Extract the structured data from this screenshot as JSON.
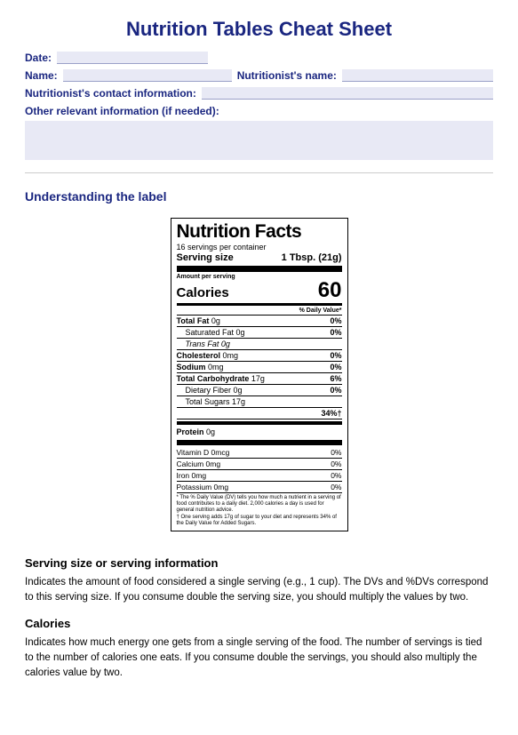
{
  "title": "Nutrition Tables Cheat Sheet",
  "form": {
    "date_label": "Date:",
    "name_label": "Name:",
    "nutritionist_label": "Nutritionist's name:",
    "contact_label": "Nutritionist's contact information:",
    "other_label": "Other relevant information (if needed):"
  },
  "understanding_heading": "Understanding the label",
  "label": {
    "title": "Nutrition Facts",
    "servings_per_container": "16 servings per container",
    "serving_size_label": "Serving size",
    "serving_size_value": "1 Tbsp. (21g)",
    "amount_per_serving": "Amount per serving",
    "calories_label": "Calories",
    "calories_value": "60",
    "dv_header": "% Daily Value*",
    "rows": [
      {
        "name": "Total Fat",
        "amount": "0g",
        "dv": "0%",
        "bold": true
      },
      {
        "name": "Saturated Fat",
        "amount": "0g",
        "dv": "0%",
        "indent": 1
      },
      {
        "name": "Trans Fat",
        "amount": "0g",
        "dv": "",
        "indent": 2
      },
      {
        "name": "Cholesterol",
        "amount": "0mg",
        "dv": "0%",
        "bold": true
      },
      {
        "name": "Sodium",
        "amount": "0mg",
        "dv": "0%",
        "bold": true
      },
      {
        "name": "Total Carbohydrate",
        "amount": "17g",
        "dv": "6%",
        "bold": true
      },
      {
        "name": "Dietary Fiber",
        "amount": "0g",
        "dv": "0%",
        "indent": 1
      },
      {
        "name": "Total Sugars",
        "amount": "17g",
        "dv": "",
        "indent": 1
      },
      {
        "name": "",
        "amount": "",
        "dv": "34%†",
        "indent": 1
      }
    ],
    "protein": {
      "name": "Protein",
      "amount": "0g",
      "dv": ""
    },
    "vitamins": [
      {
        "name": "Vitamin D",
        "amount": "0mcg",
        "dv": "0%"
      },
      {
        "name": "Calcium",
        "amount": "0mg",
        "dv": "0%"
      },
      {
        "name": "Iron",
        "amount": "0mg",
        "dv": "0%"
      },
      {
        "name": "Potassium",
        "amount": "0mg",
        "dv": "0%"
      }
    ],
    "footnote1": "* The % Daily Value (DV) tells you how much a nutrient in a serving of food contributes to a daily diet. 2,000 calories a day is used for general nutrition advice.",
    "footnote2": "† One serving adds 17g of sugar to your diet and represents 34% of the Daily Value for Added Sugars."
  },
  "sections": {
    "serving_heading": "Serving size or serving information",
    "serving_text": "Indicates the amount of food considered a single serving (e.g., 1 cup). The DVs and %DVs correspond to this serving size. If you consume double the serving size, you should multiply the values by two.",
    "calories_heading": "Calories",
    "calories_text": "Indicates how much energy one gets from a single serving of the food. The number of servings is tied to the number of calories one eats. If you consume double the servings, you should also multiply the calories value by two."
  },
  "colors": {
    "heading": "#1a2680",
    "fill_bg": "#e8e9f5",
    "fill_border": "#9aa0c8"
  }
}
